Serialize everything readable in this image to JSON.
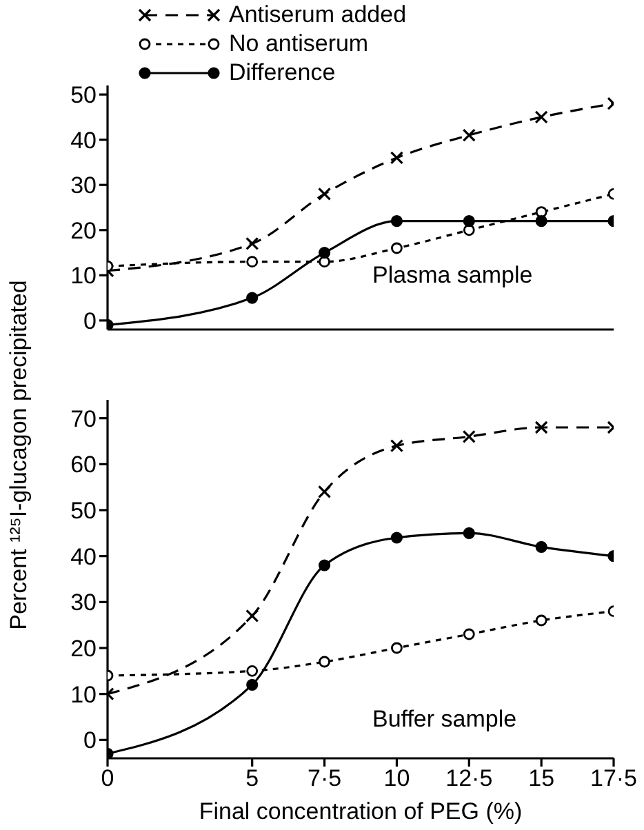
{
  "chart_data": [
    {
      "type": "line",
      "ylabel": "Percent ¹²⁵I-glucagon precipitated",
      "x": [
        0,
        5,
        7.5,
        10,
        12.5,
        15,
        17.5
      ],
      "xlim": [
        0,
        17.5
      ],
      "xticks": [
        0,
        5,
        7.5,
        10,
        12.5,
        15,
        17.5
      ],
      "ylim": [
        -2,
        52
      ],
      "yticks": [
        0,
        10,
        20,
        30,
        40,
        50
      ],
      "tick_labels": "y",
      "legend": "top left",
      "grid": false,
      "annotations": [
        "Plasma sample"
      ],
      "series": [
        {
          "name": "Antiserum added",
          "color": "#000000",
          "marker": "cross",
          "line_style": "dashed",
          "values": [
            11,
            17,
            28,
            36,
            41,
            45,
            48
          ]
        },
        {
          "name": "No antiserum",
          "color": "#000000",
          "marker": "circle",
          "line_style": "dotted",
          "values": [
            12,
            13,
            13,
            16,
            20,
            24,
            28
          ]
        },
        {
          "name": "Difference",
          "color": "#000000",
          "marker": "dot",
          "line_style": "solid",
          "values": [
            -1,
            5,
            15,
            22,
            22,
            22,
            22
          ]
        }
      ]
    },
    {
      "type": "line",
      "xlabel": "Final concentration of PEG   (%)",
      "x": [
        0,
        5,
        7.5,
        10,
        12.5,
        15,
        17.5
      ],
      "xlim": [
        0,
        17.5
      ],
      "xticks": [
        0,
        5,
        {
          "value": 7.5,
          "label": "7·5"
        },
        10,
        {
          "value": 12.5,
          "label": "12·5"
        },
        15,
        {
          "value": 17.5,
          "label": "17·5"
        }
      ],
      "ylim": [
        -4,
        74
      ],
      "yticks": [
        0,
        10,
        20,
        30,
        40,
        50,
        60,
        70
      ],
      "grid": false,
      "annotations": [
        "Buffer sample"
      ],
      "series": [
        {
          "color": "#000000",
          "marker": "cross",
          "line_style": "dashed",
          "values": [
            10,
            27,
            54,
            64,
            66,
            68,
            68
          ]
        },
        {
          "color": "#000000",
          "marker": "circle",
          "line_style": "dotted",
          "values": [
            14,
            15,
            17,
            20,
            23,
            26,
            28
          ]
        },
        {
          "color": "#000000",
          "marker": "dot",
          "line_style": "solid",
          "values": [
            -3,
            12,
            38,
            44,
            45,
            42,
            40
          ]
        }
      ]
    }
  ]
}
